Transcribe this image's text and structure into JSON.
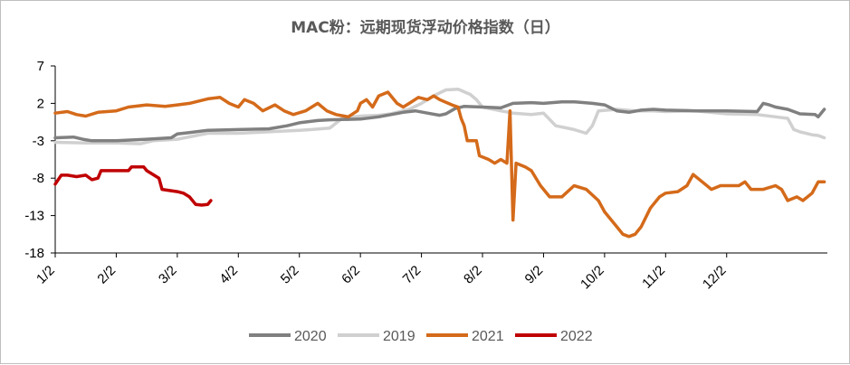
{
  "chart_data": {
    "type": "line",
    "title": "MAC粉：远期现货浮动价格指数（日）",
    "xlabel": "",
    "ylabel": "",
    "x_ticks": [
      "1/2",
      "2/2",
      "3/2",
      "4/2",
      "5/2",
      "6/2",
      "7/2",
      "8/2",
      "9/2",
      "10/2",
      "11/2",
      "12/2"
    ],
    "y_ticks": [
      7,
      2,
      -3,
      -8,
      -13,
      -18
    ],
    "ylim": [
      -18,
      7
    ],
    "xlim": [
      0,
      12.65
    ],
    "grid": false,
    "legend_position": "bottom",
    "series": [
      {
        "name": "2020",
        "color": "#808080",
        "points": [
          [
            0,
            -2.6
          ],
          [
            0.3,
            -2.5
          ],
          [
            0.45,
            -2.8
          ],
          [
            0.6,
            -3.0
          ],
          [
            1.0,
            -3.0
          ],
          [
            1.5,
            -2.8
          ],
          [
            1.9,
            -2.6
          ],
          [
            2.0,
            -2.1
          ],
          [
            2.2,
            -1.9
          ],
          [
            2.5,
            -1.6
          ],
          [
            3.0,
            -1.5
          ],
          [
            3.5,
            -1.4
          ],
          [
            3.8,
            -1.0
          ],
          [
            4.0,
            -0.6
          ],
          [
            4.3,
            -0.3
          ],
          [
            4.5,
            -0.2
          ],
          [
            5.0,
            -0.1
          ],
          [
            5.3,
            0.2
          ],
          [
            5.5,
            0.5
          ],
          [
            5.7,
            0.8
          ],
          [
            5.9,
            1.0
          ],
          [
            6.1,
            0.7
          ],
          [
            6.3,
            0.4
          ],
          [
            6.4,
            0.6
          ],
          [
            6.55,
            1.3
          ],
          [
            6.7,
            1.6
          ],
          [
            7.0,
            1.5
          ],
          [
            7.3,
            1.4
          ],
          [
            7.5,
            2.0
          ],
          [
            7.8,
            2.1
          ],
          [
            8.0,
            2.0
          ],
          [
            8.3,
            2.2
          ],
          [
            8.5,
            2.2
          ],
          [
            8.8,
            2.0
          ],
          [
            9.0,
            1.8
          ],
          [
            9.2,
            1.0
          ],
          [
            9.4,
            0.8
          ],
          [
            9.6,
            1.1
          ],
          [
            9.8,
            1.2
          ],
          [
            10.0,
            1.1
          ],
          [
            10.5,
            1.0
          ],
          [
            11.0,
            1.0
          ],
          [
            11.5,
            0.9
          ],
          [
            11.6,
            2.0
          ],
          [
            11.7,
            1.8
          ],
          [
            11.8,
            1.5
          ],
          [
            12.0,
            1.2
          ],
          [
            12.2,
            0.6
          ],
          [
            12.45,
            0.5
          ],
          [
            12.5,
            0.2
          ],
          [
            12.6,
            1.2
          ]
        ]
      },
      {
        "name": "2019",
        "color": "#d0d0d0",
        "points": [
          [
            0,
            -3.2
          ],
          [
            0.5,
            -3.3
          ],
          [
            1.0,
            -3.3
          ],
          [
            1.4,
            -3.4
          ],
          [
            1.6,
            -3.0
          ],
          [
            2.0,
            -2.8
          ],
          [
            2.5,
            -2.0
          ],
          [
            3.0,
            -2.0
          ],
          [
            3.5,
            -1.8
          ],
          [
            4.0,
            -1.6
          ],
          [
            4.2,
            -1.5
          ],
          [
            4.5,
            -1.3
          ],
          [
            4.7,
            0.0
          ],
          [
            5.0,
            0.3
          ],
          [
            5.3,
            0.4
          ],
          [
            5.5,
            0.6
          ],
          [
            5.8,
            1.2
          ],
          [
            6.0,
            2.0
          ],
          [
            6.2,
            3.0
          ],
          [
            6.4,
            3.8
          ],
          [
            6.6,
            3.9
          ],
          [
            6.8,
            3.2
          ],
          [
            6.9,
            2.5
          ],
          [
            7.0,
            1.5
          ],
          [
            7.3,
            1.0
          ],
          [
            7.5,
            0.7
          ],
          [
            7.8,
            0.5
          ],
          [
            8.0,
            0.7
          ],
          [
            8.2,
            -1.0
          ],
          [
            8.5,
            -1.5
          ],
          [
            8.7,
            -2.0
          ],
          [
            8.8,
            -1.0
          ],
          [
            8.9,
            1.0
          ],
          [
            9.2,
            1.2
          ],
          [
            9.5,
            1.0
          ],
          [
            9.8,
            1.0
          ],
          [
            10.0,
            0.9
          ],
          [
            10.5,
            1.0
          ],
          [
            11.0,
            0.6
          ],
          [
            11.5,
            0.5
          ],
          [
            11.8,
            0.2
          ],
          [
            12.0,
            0.0
          ],
          [
            12.1,
            -1.5
          ],
          [
            12.2,
            -1.8
          ],
          [
            12.3,
            -2.0
          ],
          [
            12.4,
            -2.2
          ],
          [
            12.5,
            -2.3
          ],
          [
            12.6,
            -2.6
          ]
        ]
      },
      {
        "name": "2021",
        "color": "#d46a1a",
        "points": [
          [
            0,
            0.7
          ],
          [
            0.2,
            0.9
          ],
          [
            0.35,
            0.5
          ],
          [
            0.5,
            0.3
          ],
          [
            0.7,
            0.8
          ],
          [
            1.0,
            1.0
          ],
          [
            1.2,
            1.5
          ],
          [
            1.5,
            1.8
          ],
          [
            1.8,
            1.6
          ],
          [
            2.0,
            1.8
          ],
          [
            2.2,
            2.0
          ],
          [
            2.5,
            2.6
          ],
          [
            2.7,
            2.8
          ],
          [
            2.85,
            2.0
          ],
          [
            3.0,
            1.5
          ],
          [
            3.1,
            2.5
          ],
          [
            3.25,
            2.0
          ],
          [
            3.4,
            1.0
          ],
          [
            3.6,
            1.8
          ],
          [
            3.75,
            1.0
          ],
          [
            3.9,
            0.5
          ],
          [
            4.1,
            1.0
          ],
          [
            4.3,
            2.0
          ],
          [
            4.45,
            1.0
          ],
          [
            4.6,
            0.5
          ],
          [
            4.8,
            0.2
          ],
          [
            4.95,
            1.0
          ],
          [
            5.0,
            2.0
          ],
          [
            5.1,
            2.5
          ],
          [
            5.2,
            1.5
          ],
          [
            5.3,
            3.0
          ],
          [
            5.45,
            3.5
          ],
          [
            5.6,
            2.0
          ],
          [
            5.7,
            1.5
          ],
          [
            5.8,
            2.0
          ],
          [
            5.95,
            2.8
          ],
          [
            6.1,
            2.5
          ],
          [
            6.2,
            3.0
          ],
          [
            6.3,
            2.5
          ],
          [
            6.5,
            1.8
          ],
          [
            6.6,
            1.5
          ],
          [
            6.65,
            0.0
          ],
          [
            6.7,
            -1.0
          ],
          [
            6.75,
            -3.0
          ],
          [
            6.9,
            -3.0
          ],
          [
            6.95,
            -5.0
          ],
          [
            7.1,
            -5.5
          ],
          [
            7.2,
            -6.0
          ],
          [
            7.3,
            -5.5
          ],
          [
            7.4,
            -6.0
          ],
          [
            7.45,
            1.0
          ],
          [
            7.5,
            -13.6
          ],
          [
            7.55,
            -6.0
          ],
          [
            7.7,
            -6.5
          ],
          [
            7.8,
            -7.0
          ],
          [
            7.95,
            -9.0
          ],
          [
            8.1,
            -10.5
          ],
          [
            8.3,
            -10.5
          ],
          [
            8.5,
            -9.0
          ],
          [
            8.7,
            -9.5
          ],
          [
            8.9,
            -11.0
          ],
          [
            9.0,
            -12.5
          ],
          [
            9.2,
            -14.5
          ],
          [
            9.3,
            -15.5
          ],
          [
            9.4,
            -15.8
          ],
          [
            9.5,
            -15.5
          ],
          [
            9.6,
            -14.5
          ],
          [
            9.75,
            -12.0
          ],
          [
            9.9,
            -10.5
          ],
          [
            10.0,
            -10.0
          ],
          [
            10.2,
            -9.8
          ],
          [
            10.35,
            -9.0
          ],
          [
            10.45,
            -7.5
          ],
          [
            10.6,
            -8.5
          ],
          [
            10.75,
            -9.5
          ],
          [
            10.9,
            -9.0
          ],
          [
            11.0,
            -9.0
          ],
          [
            11.2,
            -9.0
          ],
          [
            11.3,
            -8.5
          ],
          [
            11.4,
            -9.5
          ],
          [
            11.6,
            -9.5
          ],
          [
            11.8,
            -9.0
          ],
          [
            11.9,
            -9.5
          ],
          [
            12.0,
            -11.0
          ],
          [
            12.15,
            -10.5
          ],
          [
            12.25,
            -11.0
          ],
          [
            12.4,
            -10.0
          ],
          [
            12.5,
            -8.5
          ],
          [
            12.6,
            -8.5
          ]
        ]
      },
      {
        "name": "2022",
        "color": "#c00000",
        "points": [
          [
            0,
            -8.8
          ],
          [
            0.1,
            -7.6
          ],
          [
            0.2,
            -7.6
          ],
          [
            0.35,
            -7.8
          ],
          [
            0.5,
            -7.6
          ],
          [
            0.6,
            -8.2
          ],
          [
            0.7,
            -8.0
          ],
          [
            0.75,
            -7.0
          ],
          [
            1.0,
            -7.0
          ],
          [
            1.2,
            -7.0
          ],
          [
            1.25,
            -6.5
          ],
          [
            1.45,
            -6.5
          ],
          [
            1.5,
            -7.0
          ],
          [
            1.7,
            -8.0
          ],
          [
            1.75,
            -9.5
          ],
          [
            2.0,
            -9.8
          ],
          [
            2.1,
            -10.0
          ],
          [
            2.2,
            -10.5
          ],
          [
            2.3,
            -11.5
          ],
          [
            2.4,
            -11.6
          ],
          [
            2.5,
            -11.5
          ],
          [
            2.55,
            -11.0
          ]
        ]
      }
    ]
  }
}
